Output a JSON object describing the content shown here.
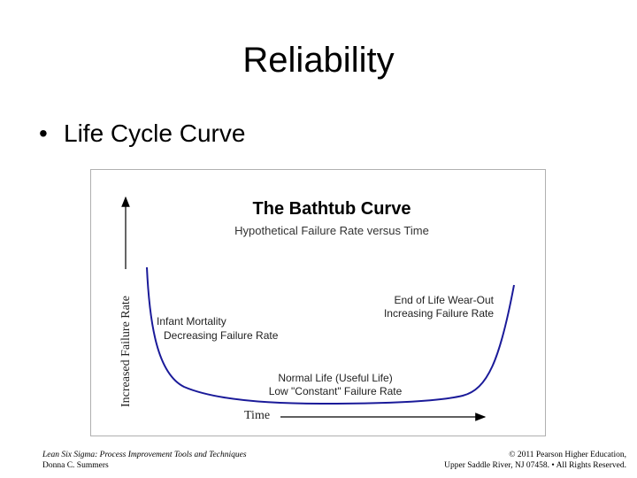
{
  "slide": {
    "title": "Reliability",
    "bullet": "•",
    "bullet_text": "Life Cycle Curve"
  },
  "figure": {
    "title": "The Bathtub Curve",
    "subtitle": "Hypothetical Failure Rate versus Time",
    "y_axis_label": "Increased Failure Rate",
    "x_axis_label": "Time",
    "regions": {
      "infant_mortality": {
        "line1": "Infant Mortality",
        "line2": "Decreasing Failure Rate"
      },
      "normal_life": {
        "line1": "Normal Life (Useful Life)",
        "line2": "Low \"Constant\" Failure Rate"
      },
      "wear_out": {
        "line1": "End of Life Wear-Out",
        "line2": "Increasing Failure Rate"
      }
    },
    "curve_color": "#1a1a99"
  },
  "footer": {
    "left_line1": "Lean Six Sigma: Process Improvement Tools and Techniques",
    "left_line2": "Donna C. Summers",
    "right_line1": "© 2011 Pearson Higher Education,",
    "right_line2": "Upper Saddle River, NJ 07458. • All Rights Reserved."
  }
}
